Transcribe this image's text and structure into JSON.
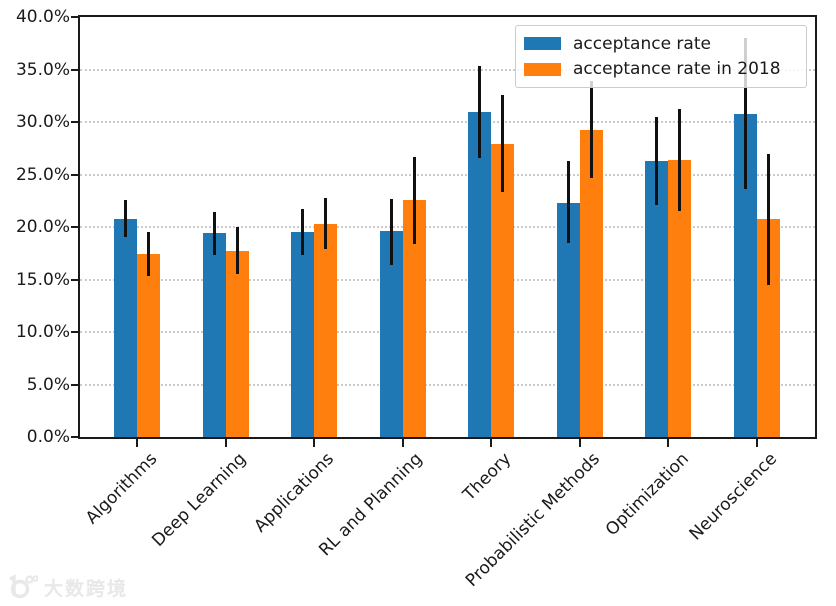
{
  "watermark": {
    "text": "大数跨境",
    "logo_icon": "ten-power-logo"
  },
  "chart_data": {
    "type": "bar",
    "title": "",
    "xlabel": "",
    "ylabel": "",
    "categories": [
      "Algorithms",
      "Deep Learning",
      "Applications",
      "RL and Planning",
      "Theory",
      "Probabilistic Methods",
      "Optimization",
      "Neuroscience"
    ],
    "series": [
      {
        "name": "acceptance rate",
        "color": "#1f77b4",
        "values": [
          20.8,
          19.4,
          19.5,
          19.6,
          31.0,
          22.3,
          26.3,
          30.8
        ],
        "error_low": [
          19.0,
          17.3,
          17.3,
          16.4,
          26.6,
          18.5,
          22.1,
          23.6
        ],
        "error_high": [
          22.6,
          21.4,
          21.7,
          22.7,
          35.3,
          26.3,
          30.5,
          38.0
        ]
      },
      {
        "name": "acceptance rate in 2018",
        "color": "#ff7f0e",
        "values": [
          17.4,
          17.7,
          20.3,
          22.6,
          27.9,
          29.2,
          26.4,
          20.8
        ],
        "error_low": [
          15.3,
          15.5,
          17.9,
          18.4,
          23.3,
          24.7,
          21.5,
          14.5
        ],
        "error_high": [
          19.5,
          20.0,
          22.8,
          26.7,
          32.6,
          33.9,
          31.2,
          27.0
        ]
      }
    ],
    "error_bar_color": "#111111",
    "ylim": [
      0,
      40
    ],
    "ytick_step": 5,
    "ytick_labels": [
      "0.0%",
      "5.0%",
      "10.0%",
      "15.0%",
      "20.0%",
      "25.0%",
      "30.0%",
      "35.0%",
      "40.0%"
    ],
    "grid": "horizontal dotted",
    "legend_position": "upper right"
  }
}
